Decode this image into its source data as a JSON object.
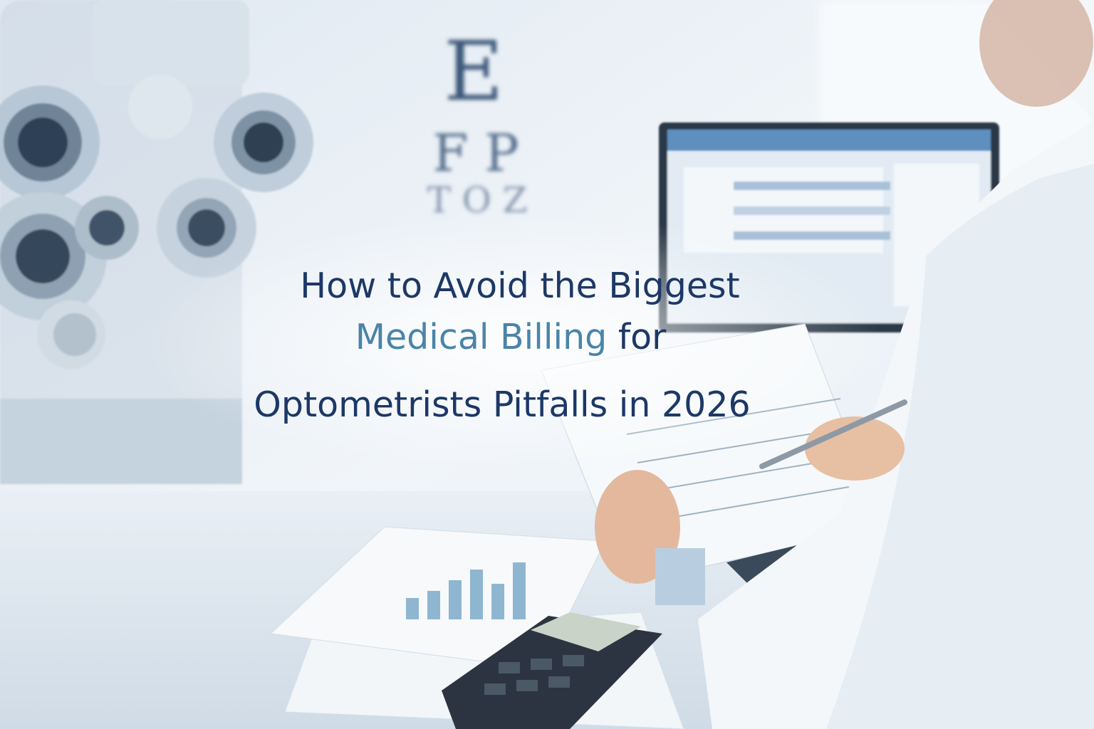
{
  "title": {
    "line1": "How to Avoid the Biggest",
    "line2_highlight": "Medical Billing",
    "line2_rest": "for",
    "line3": "Optometrists Pitfalls in 2026"
  },
  "eye_chart": {
    "rows": [
      "E",
      "F P",
      "T O Z"
    ]
  }
}
